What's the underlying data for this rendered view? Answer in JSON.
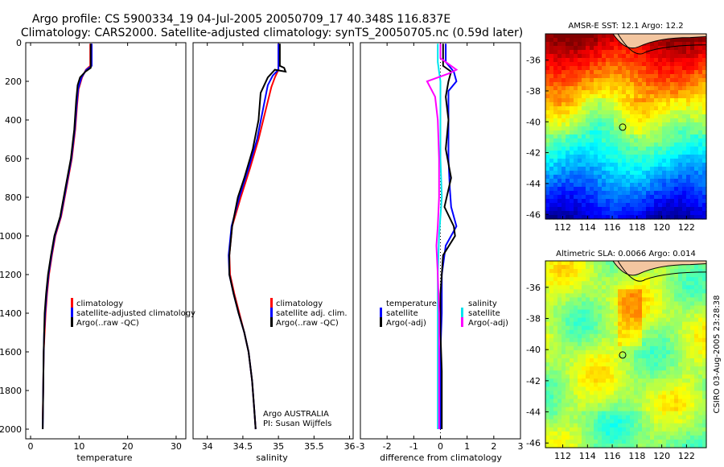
{
  "title": {
    "line1": "Argo profile: CS 5900334_19 04-Jul-2005 20050709_17 40.348S 116.837E",
    "line2": "Climatology: CARS2000. Satellite-adjusted climatology: synTS_20050705.nc (0.59d later)"
  },
  "side_label": "CSIRO 03-Aug-2005 23:28:38",
  "colors": {
    "climatology": "#ff0000",
    "satellite": "#0000ff",
    "argo": "#000000",
    "salinity_satellite": "#00e5ee",
    "salinity_argo": "#ff00ff"
  },
  "depth_axis": {
    "ticks": [
      0,
      200,
      400,
      600,
      800,
      1000,
      1200,
      1400,
      1600,
      1800,
      2000
    ],
    "tick_labels": [
      "0",
      "200",
      "400",
      "600",
      "800",
      "1000",
      "1200",
      "1400",
      "1600",
      "1800",
      "2000"
    ]
  },
  "chart_data": [
    {
      "type": "line",
      "name": "temperature-profile",
      "xlabel": "temperature",
      "xlim": [
        -1,
        32
      ],
      "ylim": [
        2050,
        0
      ],
      "x_ticks": [
        0,
        10,
        20,
        30
      ],
      "x_tick_labels": [
        "0",
        "10",
        "20",
        "30"
      ],
      "legend": [
        "climatology",
        "satellite-adjusted climatology",
        "Argo(..raw -QC)"
      ],
      "series": [
        {
          "name": "climatology",
          "color": "red",
          "points": [
            [
              12.3,
              5
            ],
            [
              12.3,
              120
            ],
            [
              11.4,
              140
            ],
            [
              10.6,
              180
            ],
            [
              9.9,
              240
            ],
            [
              9.6,
              320
            ],
            [
              9.2,
              450
            ],
            [
              8.5,
              600
            ],
            [
              7.4,
              750
            ],
            [
              6.3,
              900
            ],
            [
              5.1,
              1000
            ],
            [
              4.4,
              1100
            ],
            [
              3.8,
              1200
            ],
            [
              3.4,
              1300
            ],
            [
              3.1,
              1400
            ],
            [
              2.9,
              1500
            ],
            [
              2.7,
              1600
            ],
            [
              2.6,
              1800
            ],
            [
              2.5,
              1950
            ]
          ]
        },
        {
          "name": "satellite-adjusted climatology",
          "color": "blue",
          "points": [
            [
              12.6,
              5
            ],
            [
              12.6,
              120
            ],
            [
              11.5,
              140
            ],
            [
              10.5,
              180
            ],
            [
              9.8,
              240
            ],
            [
              9.5,
              320
            ],
            [
              9.1,
              450
            ],
            [
              8.4,
              600
            ],
            [
              7.3,
              750
            ],
            [
              6.2,
              900
            ],
            [
              5.0,
              1000
            ],
            [
              4.3,
              1100
            ],
            [
              3.7,
              1200
            ],
            [
              3.3,
              1300
            ],
            [
              3.0,
              1400
            ],
            [
              2.8,
              1500
            ],
            [
              2.7,
              1600
            ],
            [
              2.6,
              1800
            ],
            [
              2.5,
              2000
            ]
          ]
        },
        {
          "name": "Argo(..raw -QC)",
          "color": "black",
          "points": [
            [
              12.4,
              5
            ],
            [
              12.4,
              130
            ],
            [
              11.3,
              150
            ],
            [
              10.2,
              180
            ],
            [
              9.7,
              220
            ],
            [
              9.4,
              300
            ],
            [
              9.0,
              450
            ],
            [
              8.3,
              600
            ],
            [
              7.2,
              750
            ],
            [
              6.1,
              900
            ],
            [
              4.9,
              1000
            ],
            [
              4.2,
              1100
            ],
            [
              3.6,
              1200
            ],
            [
              3.2,
              1300
            ],
            [
              2.9,
              1400
            ],
            [
              2.8,
              1500
            ],
            [
              2.7,
              1600
            ],
            [
              2.6,
              1800
            ],
            [
              2.5,
              2000
            ]
          ]
        }
      ]
    },
    {
      "type": "line",
      "name": "salinity-profile",
      "xlabel": "salinity",
      "xlim": [
        33.8,
        36.05
      ],
      "ylim": [
        2050,
        0
      ],
      "x_ticks": [
        34,
        34.5,
        35,
        35.5,
        36
      ],
      "x_tick_labels": [
        "34",
        "34.5",
        "35",
        "35.5",
        "36"
      ],
      "legend": [
        "climatology",
        "satellite adj. clim.",
        "Argo(..raw -QC)"
      ],
      "annotation": {
        "line1": "Argo AUSTRALIA",
        "line2": "PI: Susan Wijffels"
      },
      "series": [
        {
          "name": "climatology",
          "color": "red",
          "points": [
            [
              35.0,
              5
            ],
            [
              35.0,
              140
            ],
            [
              34.95,
              180
            ],
            [
              34.9,
              230
            ],
            [
              34.82,
              350
            ],
            [
              34.72,
              500
            ],
            [
              34.6,
              650
            ],
            [
              34.47,
              800
            ],
            [
              34.35,
              950
            ],
            [
              34.31,
              1100
            ],
            [
              34.32,
              1200
            ],
            [
              34.38,
              1300
            ],
            [
              34.45,
              1400
            ],
            [
              34.52,
              1500
            ],
            [
              34.58,
              1600
            ],
            [
              34.63,
              1750
            ],
            [
              34.66,
              1900
            ],
            [
              34.68,
              2000
            ]
          ]
        },
        {
          "name": "satellite adj. clim.",
          "color": "blue",
          "points": [
            [
              35.0,
              5
            ],
            [
              35.0,
              140
            ],
            [
              34.92,
              170
            ],
            [
              34.85,
              220
            ],
            [
              34.78,
              350
            ],
            [
              34.7,
              500
            ],
            [
              34.58,
              650
            ],
            [
              34.45,
              800
            ],
            [
              34.34,
              950
            ],
            [
              34.3,
              1100
            ],
            [
              34.31,
              1200
            ],
            [
              34.37,
              1300
            ],
            [
              34.44,
              1400
            ],
            [
              34.52,
              1500
            ],
            [
              34.58,
              1600
            ],
            [
              34.63,
              1750
            ],
            [
              34.66,
              1900
            ],
            [
              34.68,
              2000
            ]
          ]
        },
        {
          "name": "Argo(..raw -QC)",
          "color": "black",
          "points": [
            [
              35.02,
              5
            ],
            [
              35.02,
              120
            ],
            [
              35.08,
              130
            ],
            [
              35.1,
              150
            ],
            [
              34.95,
              140
            ],
            [
              34.85,
              180
            ],
            [
              34.75,
              260
            ],
            [
              34.72,
              400
            ],
            [
              34.64,
              550
            ],
            [
              34.52,
              700
            ],
            [
              34.43,
              800
            ],
            [
              34.35,
              950
            ],
            [
              34.31,
              1100
            ],
            [
              34.31,
              1200
            ],
            [
              34.37,
              1300
            ],
            [
              34.44,
              1400
            ],
            [
              34.52,
              1500
            ],
            [
              34.58,
              1600
            ],
            [
              34.63,
              1750
            ],
            [
              34.66,
              1900
            ],
            [
              34.68,
              2000
            ]
          ]
        }
      ]
    },
    {
      "type": "line",
      "name": "difference-profile",
      "xlabel": "difference from climatology",
      "xlim": [
        -3,
        3
      ],
      "ylim": [
        2050,
        0
      ],
      "x_ticks": [
        -3,
        -2,
        -1,
        0,
        1,
        2,
        3
      ],
      "x_tick_labels": [
        "-3",
        "-2",
        "-1",
        "0",
        "1",
        "2",
        "3"
      ],
      "legend_left": {
        "title": "temperature",
        "items": [
          "satellite",
          "Argo(-adj)"
        ]
      },
      "legend_right": {
        "title": "salinity",
        "items": [
          "satellite",
          "Argo(-adj)"
        ]
      },
      "series": [
        {
          "name": "temperature satellite",
          "color": "blue",
          "points": [
            [
              0.2,
              5
            ],
            [
              0.2,
              100
            ],
            [
              0.5,
              150
            ],
            [
              0.6,
              200
            ],
            [
              0.3,
              250
            ],
            [
              0.3,
              400
            ],
            [
              0.3,
              600
            ],
            [
              0.35,
              750
            ],
            [
              0.4,
              850
            ],
            [
              0.5,
              900
            ],
            [
              0.6,
              950
            ],
            [
              0.2,
              1050
            ],
            [
              0.05,
              1200
            ],
            [
              0.05,
              1400
            ],
            [
              0.0,
              1600
            ],
            [
              0.0,
              2000
            ]
          ]
        },
        {
          "name": "temperature Argo(-adj)",
          "color": "black",
          "points": [
            [
              0.1,
              5
            ],
            [
              0.1,
              120
            ],
            [
              0.4,
              150
            ],
            [
              0.3,
              200
            ],
            [
              0.2,
              280
            ],
            [
              0.3,
              400
            ],
            [
              0.2,
              550
            ],
            [
              0.4,
              700
            ],
            [
              0.15,
              850
            ],
            [
              0.5,
              950
            ],
            [
              0.55,
              1000
            ],
            [
              0.1,
              1100
            ],
            [
              0.0,
              1300
            ],
            [
              0.0,
              1500
            ],
            [
              0.05,
              1700
            ],
            [
              0.05,
              2000
            ]
          ]
        },
        {
          "name": "salinity satellite",
          "color": "cyan",
          "points": [
            [
              -0.1,
              5
            ],
            [
              -0.1,
              100
            ],
            [
              -0.05,
              150
            ],
            [
              0.0,
              200
            ],
            [
              0.0,
              400
            ],
            [
              0.0,
              600
            ],
            [
              0.05,
              800
            ],
            [
              -0.05,
              1000
            ],
            [
              -0.1,
              1200
            ],
            [
              -0.1,
              1400
            ],
            [
              -0.1,
              1600
            ],
            [
              -0.1,
              2000
            ]
          ]
        },
        {
          "name": "salinity Argo(-adj)",
          "color": "magenta",
          "points": [
            [
              0.0,
              5
            ],
            [
              0.0,
              80
            ],
            [
              0.3,
              110
            ],
            [
              0.6,
              140
            ],
            [
              0.3,
              160
            ],
            [
              -0.5,
              200
            ],
            [
              -0.2,
              280
            ],
            [
              -0.1,
              400
            ],
            [
              -0.05,
              600
            ],
            [
              -0.05,
              800
            ],
            [
              -0.1,
              950
            ],
            [
              -0.15,
              1050
            ],
            [
              -0.1,
              1200
            ],
            [
              -0.05,
              1400
            ],
            [
              -0.05,
              1700
            ],
            [
              -0.05,
              2000
            ]
          ]
        }
      ]
    },
    {
      "type": "heatmap",
      "name": "sst-map",
      "title": "AMSR-E SST: 12.1 Argo: 12.2",
      "x_ticks": [
        112,
        114,
        116,
        118,
        120,
        122
      ],
      "x_tick_labels": [
        "112",
        "114",
        "116",
        "118",
        "120",
        "122"
      ],
      "y_ticks": [
        -36,
        -38,
        -40,
        -42,
        -44,
        -46
      ],
      "y_tick_labels": [
        "-36",
        "-38",
        "-40",
        "-42",
        "-44",
        "-46"
      ],
      "xlim": [
        110.6,
        123.6
      ],
      "ylim": [
        -46.3,
        -34.3
      ],
      "marker": {
        "lon": 116.837,
        "lat": -40.348
      }
    },
    {
      "type": "heatmap",
      "name": "sla-map",
      "title": "Altimetric SLA: 0.0066 Argo: 0.014",
      "x_ticks": [
        112,
        114,
        116,
        118,
        120,
        122
      ],
      "x_tick_labels": [
        "112",
        "114",
        "116",
        "118",
        "120",
        "122"
      ],
      "y_ticks": [
        -36,
        -38,
        -40,
        -42,
        -44,
        -46
      ],
      "y_tick_labels": [
        "-36",
        "-38",
        "-40",
        "-42",
        "-44",
        "-46"
      ],
      "xlim": [
        110.6,
        123.6
      ],
      "ylim": [
        -46.3,
        -34.3
      ],
      "marker": {
        "lon": 116.837,
        "lat": -40.348
      }
    }
  ]
}
